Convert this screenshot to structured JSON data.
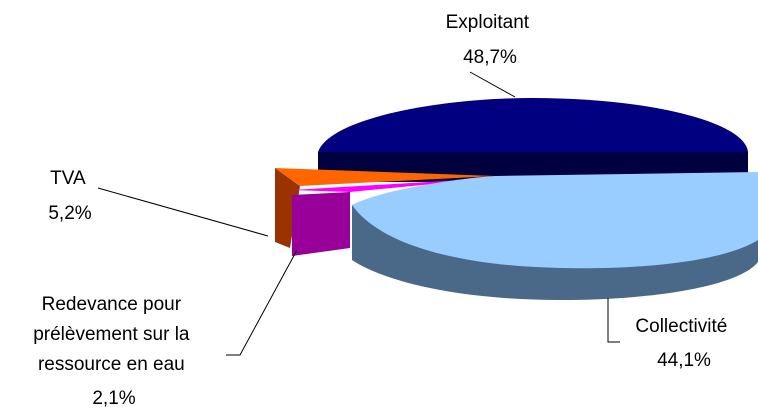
{
  "chart_data": {
    "type": "pie",
    "style": "3d-exploded",
    "legend": "none",
    "slices": [
      {
        "name": "Exploitant",
        "value": 48.7,
        "value_label": "48,7%",
        "color": "#000080"
      },
      {
        "name": "Collectivité",
        "value": 44.1,
        "value_label": "44,1%",
        "color": "#99CCFF"
      },
      {
        "name_lines": [
          "Redevance pour",
          "prélèvement sur la",
          "ressource en eau"
        ],
        "value": 2.1,
        "value_label": "2,1%",
        "color": "#990099"
      },
      {
        "name": "TVA",
        "value": 5.2,
        "value_label": "5,2%",
        "color": "#FF6600"
      }
    ]
  }
}
